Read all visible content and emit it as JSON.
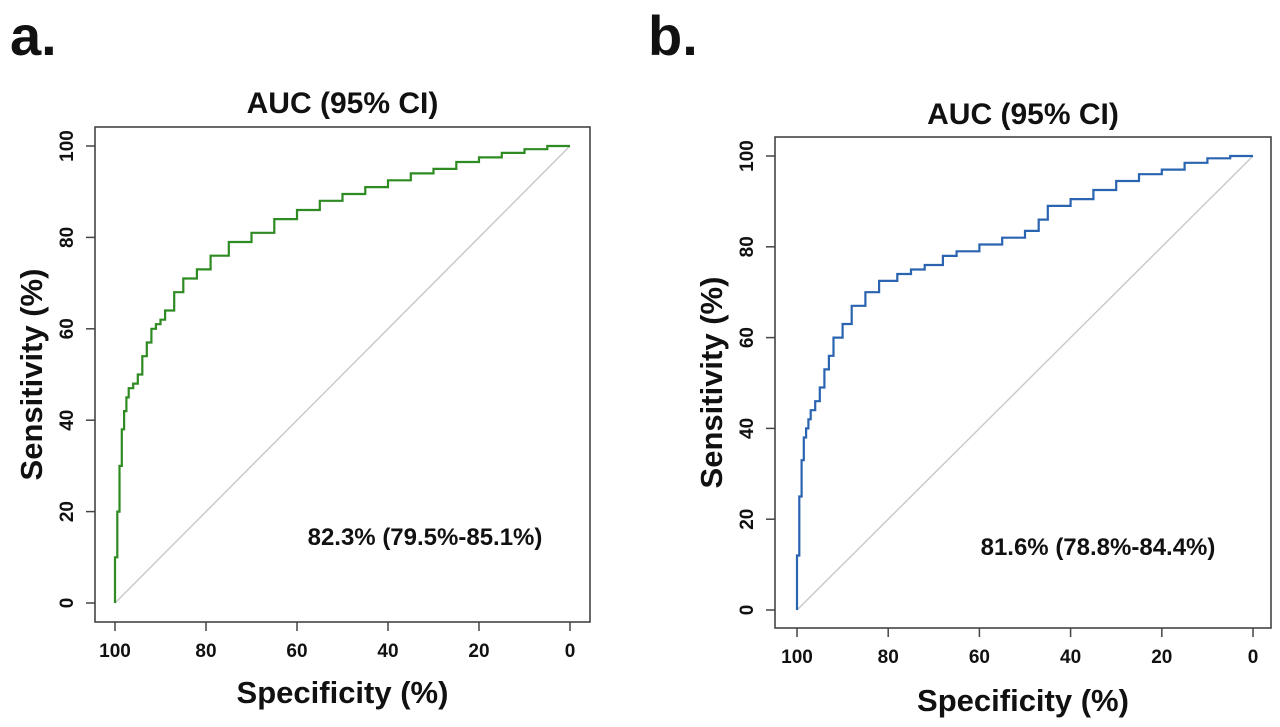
{
  "panels": [
    {
      "letter": "a.",
      "chart_data": {
        "type": "line",
        "title": "AUC (95% CI)",
        "xlabel": "Specificity (%)",
        "ylabel": "Sensitivity (%)",
        "xlim": [
          100,
          0
        ],
        "ylim": [
          0,
          100
        ],
        "x_ticks": [
          "100",
          "80",
          "60",
          "40",
          "20",
          "0"
        ],
        "y_ticks": [
          "0",
          "20",
          "40",
          "60",
          "80",
          "100"
        ],
        "annotation": "82.3% (79.5%-85.1%)",
        "color": "#2e8b22",
        "diagonal_color": "#c8c8c8",
        "series": [
          {
            "x": [
              100,
              99.5,
              99,
              98.5,
              98,
              97.5,
              97,
              96,
              95,
              94,
              93,
              92,
              91,
              90,
              89,
              87,
              85,
              82,
              79,
              75,
              70,
              65,
              60,
              55,
              50,
              45,
              40,
              35,
              30,
              25,
              20,
              15,
              10,
              5,
              0
            ],
            "y": [
              0,
              10,
              20,
              30,
              38,
              42,
              45,
              47,
              48,
              50,
              54,
              57,
              60,
              61,
              62,
              64,
              68,
              71,
              73,
              76,
              79,
              81,
              84,
              86,
              88,
              89.5,
              91,
              92.5,
              94,
              95,
              96.5,
              97.5,
              98.5,
              99.3,
              100
            ]
          }
        ]
      }
    },
    {
      "letter": "b.",
      "chart_data": {
        "type": "line",
        "title": "AUC (95% CI)",
        "xlabel": "Specificity (%)",
        "ylabel": "Sensitivity (%)",
        "xlim": [
          100,
          0
        ],
        "ylim": [
          0,
          100
        ],
        "x_ticks": [
          "100",
          "80",
          "60",
          "40",
          "20",
          "0"
        ],
        "y_ticks": [
          "0",
          "20",
          "40",
          "60",
          "80",
          "100"
        ],
        "annotation": "81.6% (78.8%-84.4%)",
        "color": "#2a63b0",
        "diagonal_color": "#c8c8c8",
        "series": [
          {
            "x": [
              100,
              99.5,
              99,
              98.5,
              98,
              97.5,
              97,
              96,
              95,
              94,
              93,
              92,
              90,
              88,
              85,
              82,
              78,
              75,
              72,
              68,
              65,
              60,
              55,
              50,
              47,
              45,
              40,
              35,
              30,
              25,
              20,
              15,
              10,
              5,
              0
            ],
            "y": [
              0,
              12,
              25,
              33,
              38,
              40,
              42,
              44,
              46,
              49,
              53,
              56,
              60,
              63,
              67,
              70,
              72.5,
              74,
              75,
              76,
              78,
              79,
              80.5,
              82,
              83.5,
              86,
              89,
              90.5,
              92.5,
              94.5,
              96,
              97,
              98.5,
              99.5,
              100
            ]
          }
        ]
      }
    }
  ]
}
